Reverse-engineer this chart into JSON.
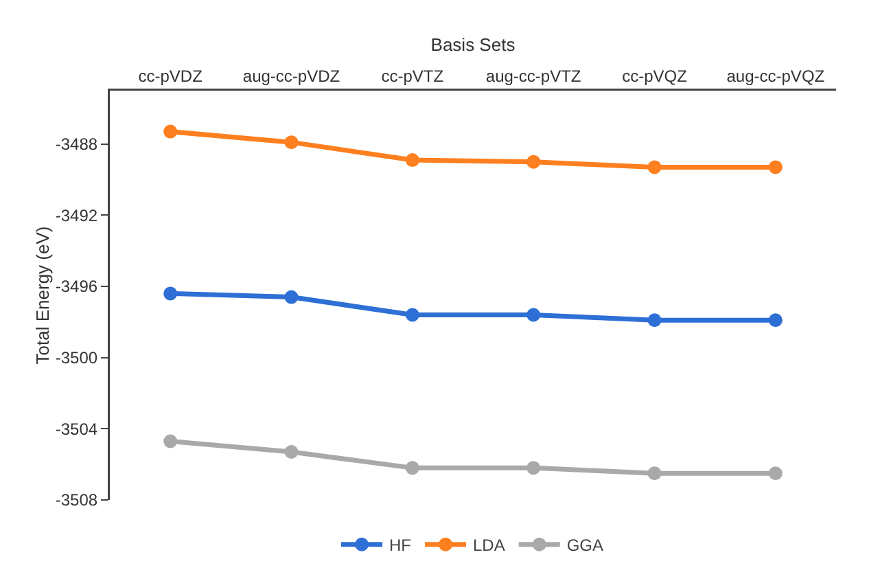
{
  "chart_data": {
    "type": "line",
    "xlabel": "Basis Sets",
    "ylabel": "Total Energy (eV)",
    "categories": [
      "cc-pVDZ",
      "aug-cc-pVDZ",
      "cc-pVTZ",
      "aug-cc-pVTZ",
      "cc-pVQZ",
      "aug-cc-pVQZ"
    ],
    "series": [
      {
        "name": "HF",
        "color": "#2e6fd6",
        "values": [
          -3496.4,
          -3496.6,
          -3497.6,
          -3497.6,
          -3497.9,
          -3497.9
        ]
      },
      {
        "name": "LDA",
        "color": "#fd7f1f",
        "values": [
          -3487.3,
          -3487.9,
          -3488.9,
          -3489.0,
          -3489.3,
          -3489.3
        ]
      },
      {
        "name": "GGA",
        "color": "#a9a9a9",
        "values": [
          -3504.7,
          -3505.3,
          -3506.2,
          -3506.2,
          -3506.5,
          -3506.5
        ]
      }
    ],
    "ylim": [
      -3508,
      -3485
    ],
    "yticks": [
      -3508,
      -3504,
      -3500,
      -3496,
      -3492,
      -3488
    ],
    "grid": false,
    "legend": "bottom",
    "marker": "circle",
    "line_style": "solid"
  }
}
